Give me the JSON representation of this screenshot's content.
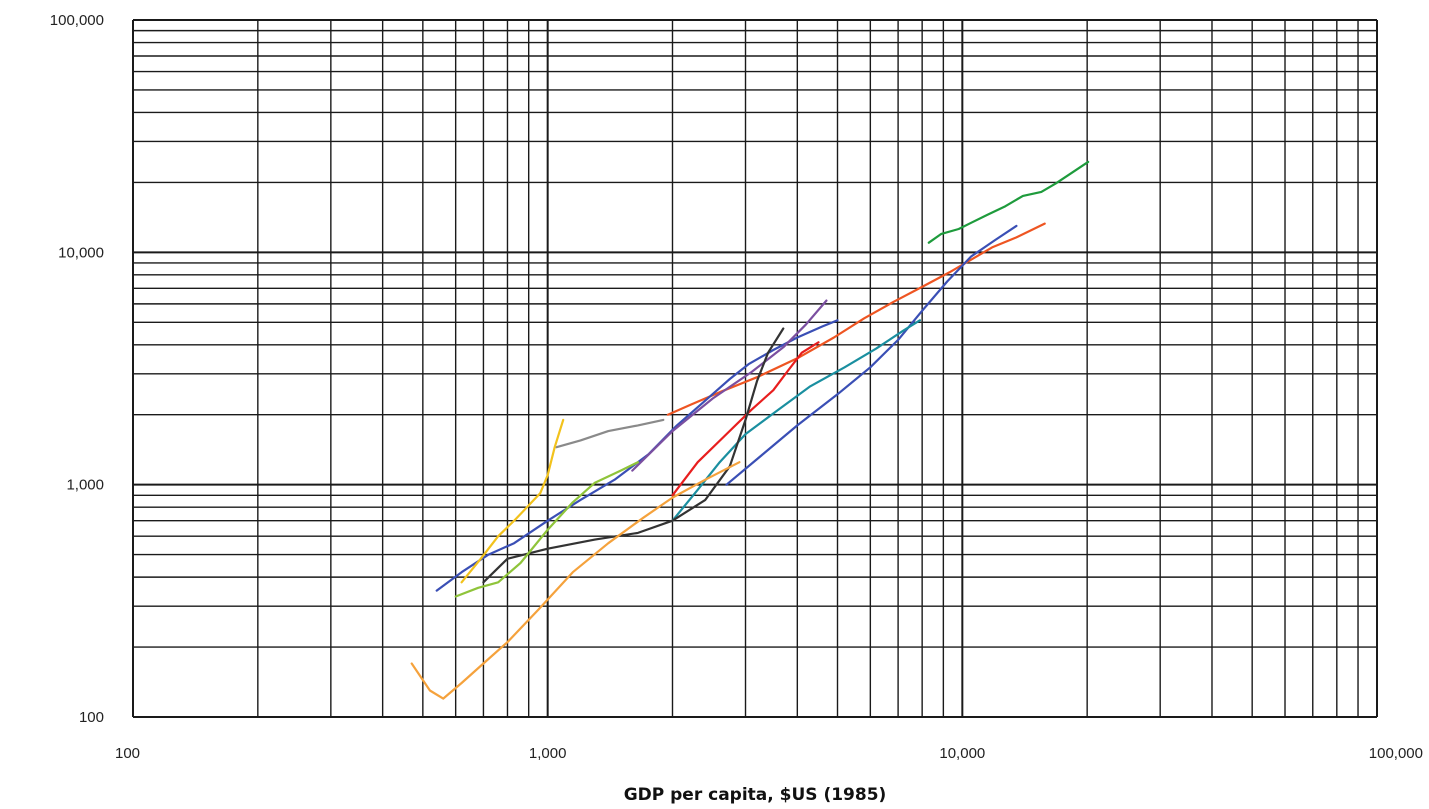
{
  "chart_data": {
    "type": "line",
    "title": "",
    "xlabel": "GDP per capita, $US (1985)",
    "ylabel": "",
    "x_scale": "log",
    "y_scale": "log",
    "xlim": [
      100,
      100000
    ],
    "ylim": [
      100,
      100000
    ],
    "grid": true,
    "x_ticks": [
      100,
      1000,
      10000,
      100000
    ],
    "y_ticks": [
      100,
      1000,
      10000,
      100000
    ],
    "x_tick_labels": [
      "100",
      "1,000",
      "10,000",
      "100,000"
    ],
    "y_tick_labels": [
      "100",
      "1,000",
      "10,000",
      "100,000"
    ],
    "series": [
      {
        "color": "#1e9b3c",
        "x": [
          8300,
          8900,
          9800,
          10500,
          11500,
          12700,
          14000,
          15500,
          16800,
          18500,
          20100
        ],
        "y": [
          11000,
          12000,
          12600,
          13400,
          14500,
          15800,
          17500,
          18200,
          19800,
          22200,
          24500
        ]
      },
      {
        "color": "#ee5522",
        "x": [
          1950,
          2200,
          2600,
          3200,
          4000,
          4900,
          5800,
          6800,
          8000,
          9300,
          10500,
          11800,
          13500,
          15800
        ],
        "y": [
          2000,
          2200,
          2500,
          2900,
          3500,
          4300,
          5200,
          6100,
          7100,
          8200,
          9300,
          10500,
          11600,
          13300
        ]
      },
      {
        "color": "#3a4fb5",
        "x": [
          540,
          620,
          720,
          830,
          1000,
          1200,
          1450,
          1750,
          2050,
          2400,
          2750,
          3050,
          3500,
          4000,
          4600,
          5000
        ],
        "y": [
          350,
          420,
          500,
          560,
          700,
          860,
          1050,
          1350,
          1800,
          2300,
          2850,
          3300,
          3800,
          4300,
          4800,
          5100
        ]
      },
      {
        "color": "#3a4fb5",
        "x": [
          2700,
          3300,
          4000,
          5000,
          6000,
          7000,
          8000,
          9200,
          10500,
          12000,
          13500
        ],
        "y": [
          1000,
          1350,
          1800,
          2450,
          3200,
          4200,
          5600,
          7500,
          9600,
          11300,
          13000
        ]
      },
      {
        "color": "#7b4fa0",
        "x": [
          1600,
          2000,
          2500,
          3100,
          3700,
          4200,
          4700
        ],
        "y": [
          1150,
          1700,
          2350,
          3050,
          3900,
          4900,
          6200
        ]
      },
      {
        "color": "#1a8fa0",
        "x": [
          2000,
          2300,
          2600,
          3000,
          3600,
          4300,
          5200,
          6200,
          7200,
          7900
        ],
        "y": [
          700,
          950,
          1250,
          1650,
          2100,
          2650,
          3200,
          3850,
          4600,
          5100
        ]
      },
      {
        "color": "#e81e1e",
        "x": [
          2000,
          2300,
          2700,
          3100,
          3500,
          3800,
          4100,
          4500
        ],
        "y": [
          900,
          1250,
          1650,
          2100,
          2550,
          3100,
          3700,
          4100
        ]
      },
      {
        "color": "#333333",
        "x": [
          700,
          800,
          1000,
          1300,
          1650,
          2000,
          2400,
          2750,
          3000,
          3200,
          3400,
          3700
        ],
        "y": [
          380,
          480,
          530,
          580,
          620,
          700,
          860,
          1200,
          1900,
          2800,
          3700,
          4700
        ]
      },
      {
        "color": "#8a8a8a",
        "x": [
          1050,
          1200,
          1400,
          1650,
          1900
        ],
        "y": [
          1450,
          1550,
          1700,
          1800,
          1900
        ]
      },
      {
        "color": "#8fc43a",
        "x": [
          600,
          680,
          760,
          860,
          1000,
          1150,
          1300,
          1500,
          1650
        ],
        "y": [
          330,
          360,
          380,
          460,
          640,
          840,
          1020,
          1150,
          1250
        ]
      },
      {
        "color": "#f2c21c",
        "x": [
          620,
          690,
          760,
          830,
          880,
          920,
          960,
          1000,
          1040,
          1090
        ],
        "y": [
          380,
          480,
          600,
          700,
          780,
          850,
          920,
          1100,
          1450,
          1900
        ]
      },
      {
        "color": "#f5a23c",
        "x": [
          470,
          520,
          560,
          620,
          700,
          800,
          950,
          1150,
          1400,
          1700,
          2000,
          2400,
          2900
        ],
        "y": [
          170,
          130,
          120,
          140,
          170,
          210,
          290,
          420,
          560,
          720,
          880,
          1050,
          1250
        ]
      }
    ]
  }
}
